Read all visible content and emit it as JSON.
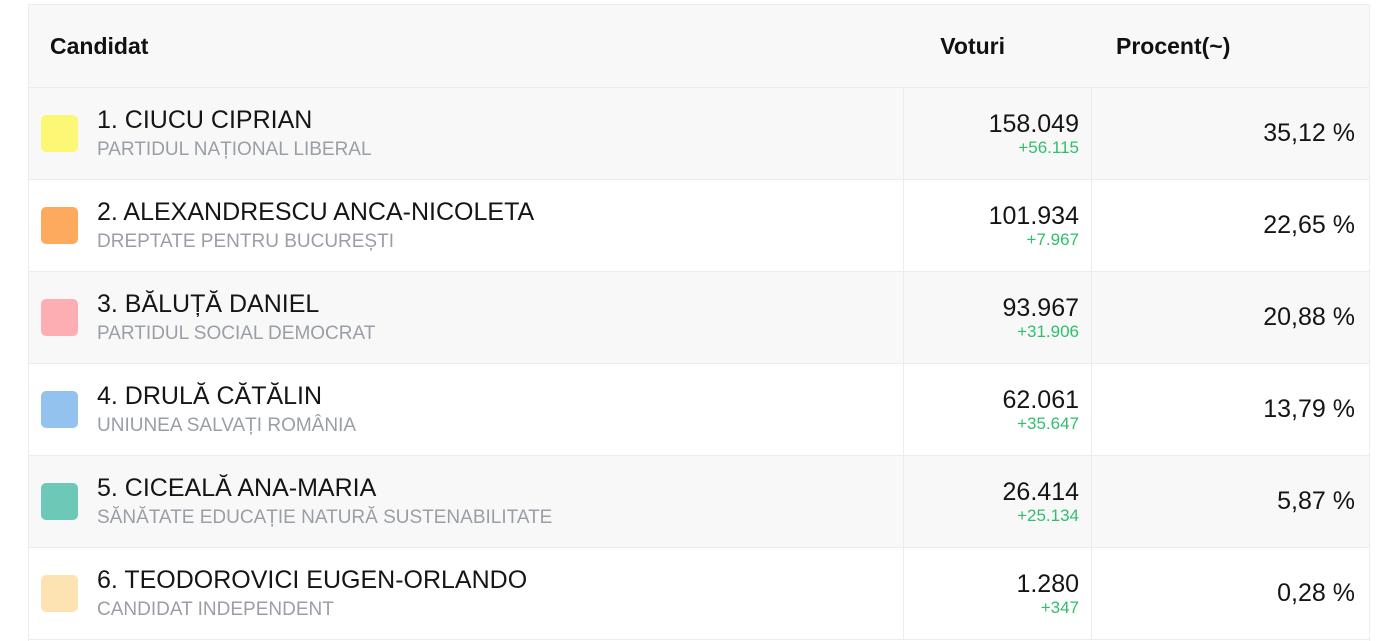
{
  "header": {
    "candidate_label": "Candidat",
    "votes_label": "Voturi",
    "percent_label": "Procent(~)"
  },
  "rows": [
    {
      "name": "1. CIUCU CIPRIAN",
      "party": "PARTIDUL NAȚIONAL LIBERAL",
      "votes": "158.049",
      "delta": "+56.115",
      "percent": "35,12 %",
      "color": "#fcf876"
    },
    {
      "name": "2. ALEXANDRESCU ANCA-NICOLETA",
      "party": "DREPTATE PENTRU BUCUREȘTI",
      "votes": "101.934",
      "delta": "+7.967",
      "percent": "22,65 %",
      "color": "#fdaa5e"
    },
    {
      "name": "3. BĂLUȚĂ DANIEL",
      "party": "PARTIDUL SOCIAL DEMOCRAT",
      "votes": "93.967",
      "delta": "+31.906",
      "percent": "20,88 %",
      "color": "#fcaeb2"
    },
    {
      "name": "4. DRULĂ CĂTĂLIN",
      "party": "UNIUNEA SALVAȚI ROMÂNIA",
      "votes": "62.061",
      "delta": "+35.647",
      "percent": "13,79 %",
      "color": "#93c2ef"
    },
    {
      "name": "5. CICEALĂ ANA-MARIA",
      "party": "SĂNĂTATE EDUCAȚIE NATURĂ SUSTENABILITATE",
      "votes": "26.414",
      "delta": "+25.134",
      "percent": "5,87 %",
      "color": "#6ec8b8"
    },
    {
      "name": "6. TEODOROVICI EUGEN-ORLANDO",
      "party": "CANDIDAT INDEPENDENT",
      "votes": "1.280",
      "delta": "+347",
      "percent": "0,28 %",
      "color": "#fde3b2"
    }
  ]
}
